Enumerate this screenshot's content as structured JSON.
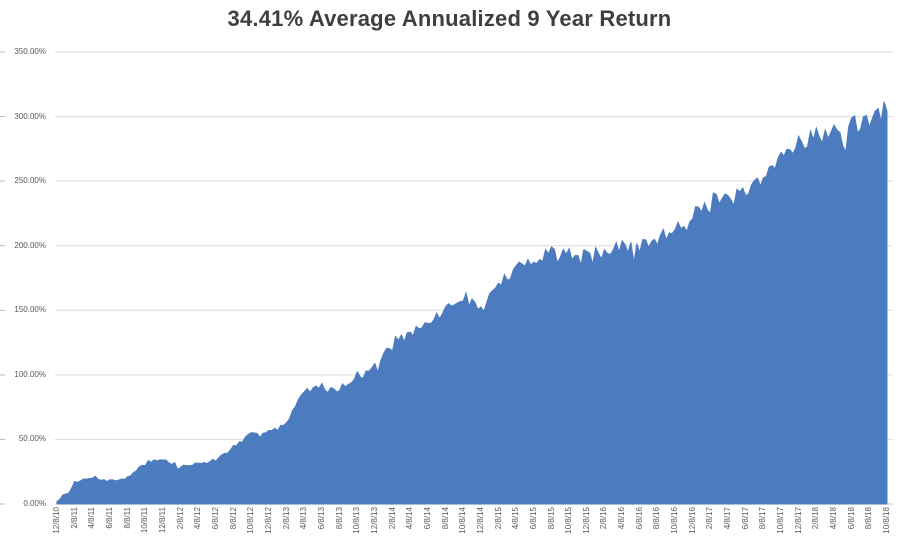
{
  "chart_data": {
    "type": "area",
    "title": "34.41% Average Annualized 9 Year Return",
    "xlabel": "",
    "ylabel": "",
    "unit": "%",
    "ylim": [
      0,
      350
    ],
    "y_tick_step": 50,
    "y_tick_labels": [
      "0.00%",
      "50.00%",
      "100.00%",
      "150.00%",
      "200.00%",
      "250.00%",
      "300.00%",
      "350.00%"
    ],
    "grid": true,
    "legend": "none",
    "categories": [
      "12/8/10",
      "2/8/11",
      "4/8/11",
      "6/8/11",
      "8/8/11",
      "10/8/11",
      "12/8/11",
      "2/8/12",
      "4/8/12",
      "6/8/12",
      "8/8/12",
      "10/8/12",
      "12/8/12",
      "2/8/13",
      "4/8/13",
      "6/8/13",
      "8/8/13",
      "10/8/13",
      "12/8/13",
      "2/8/14",
      "4/8/14",
      "6/8/14",
      "8/8/14",
      "10/8/14",
      "12/8/14",
      "2/8/15",
      "4/8/15",
      "6/8/15",
      "8/8/15",
      "10/8/15",
      "12/8/15",
      "2/8/16",
      "4/8/16",
      "6/8/16",
      "8/8/16",
      "10/8/16",
      "12/8/16",
      "2/8/17",
      "4/8/17",
      "6/8/17",
      "8/8/17",
      "10/8/17",
      "12/8/17",
      "2/8/18",
      "4/8/18",
      "6/8/18",
      "8/8/18",
      "10/8/18"
    ],
    "values": [
      2,
      16,
      21,
      18,
      20,
      33,
      34,
      29,
      31,
      34,
      44,
      54,
      57,
      62,
      88,
      91,
      89,
      100,
      106,
      126,
      131,
      140,
      150,
      161,
      150,
      170,
      181,
      190,
      196,
      194,
      196,
      193,
      199,
      199,
      204,
      214,
      226,
      234,
      236,
      240,
      249,
      269,
      281,
      286,
      287,
      292,
      300,
      304
    ],
    "colors": {
      "area": "#4c7cbf",
      "gridline": "#d9d9d9",
      "axis_line": "#c6c6c6",
      "tick_mark": "#b8b8b8",
      "axis_text": "#595959",
      "title_text": "#3f3f3f"
    }
  }
}
